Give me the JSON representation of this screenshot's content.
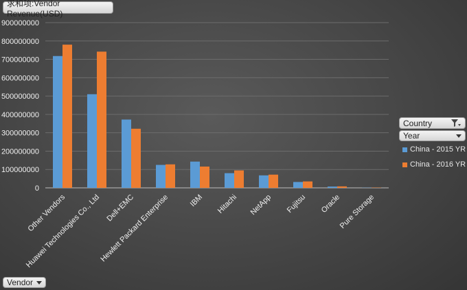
{
  "pivot": {
    "measure_label": "求和项:Vendor Revenue(USD)",
    "axis_field_label": "Vendor",
    "legend_fields": [
      "Country",
      "Year"
    ]
  },
  "chart_data": {
    "type": "bar",
    "categories": [
      "Other Vendors",
      "Huawei Technologies Co., Ltd",
      "Dell+EMC",
      "Hewlett Packard Enterprise",
      "IBM",
      "Hitachi",
      "NetApp",
      "Fujitsu",
      "Oracle",
      "Pure Storage"
    ],
    "series": [
      {
        "name": "China - 2015 YR",
        "color": "#5b9bd5",
        "values": [
          718000000,
          510000000,
          372000000,
          125000000,
          143000000,
          80000000,
          68000000,
          32000000,
          7000000,
          1000000
        ]
      },
      {
        "name": "China - 2016 YR",
        "color": "#ed7d31",
        "values": [
          780000000,
          742000000,
          322000000,
          128000000,
          116000000,
          95000000,
          72000000,
          35000000,
          8000000,
          1500000
        ]
      }
    ],
    "ylim": [
      0,
      900000000
    ],
    "yticks": [
      "0",
      "100000000",
      "200000000",
      "300000000",
      "400000000",
      "500000000",
      "600000000",
      "700000000",
      "800000000",
      "900000000"
    ],
    "grid": true,
    "legend_position": "right"
  }
}
